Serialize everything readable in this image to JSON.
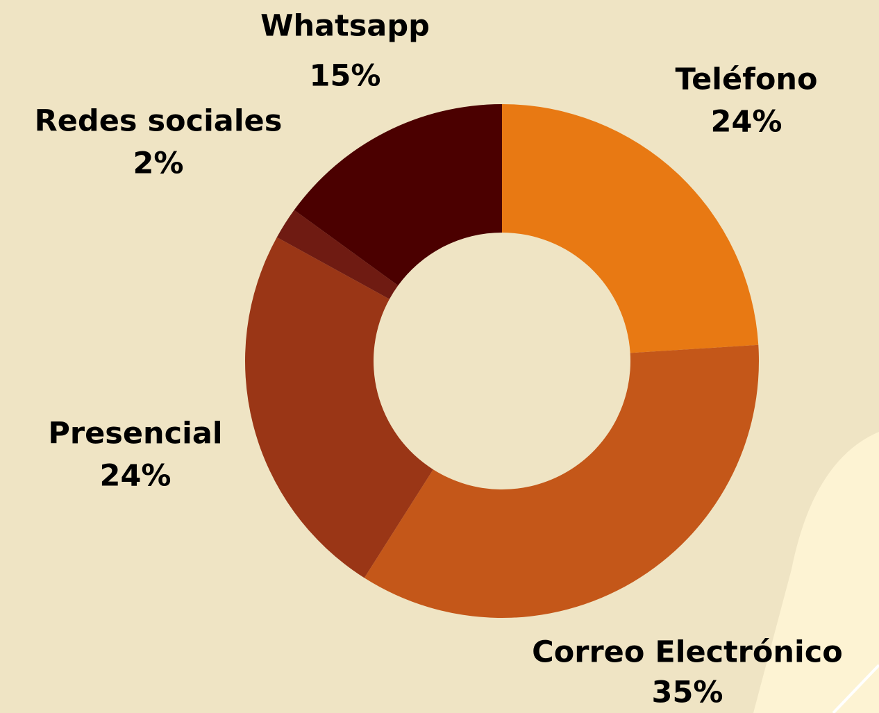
{
  "chart_data": {
    "type": "pie",
    "donut": true,
    "categories": [
      "Teléfono",
      "Correo Electrónico",
      "Presencial",
      "Redes sociales",
      "Whatsapp"
    ],
    "values": [
      24,
      35,
      24,
      2,
      15
    ],
    "value_labels": [
      "24%",
      "35%",
      "24%",
      "2%",
      "15%"
    ],
    "colors": [
      "#e87913",
      "#c45719",
      "#9a3616",
      "#6f1b12",
      "#4b0000"
    ]
  }
}
